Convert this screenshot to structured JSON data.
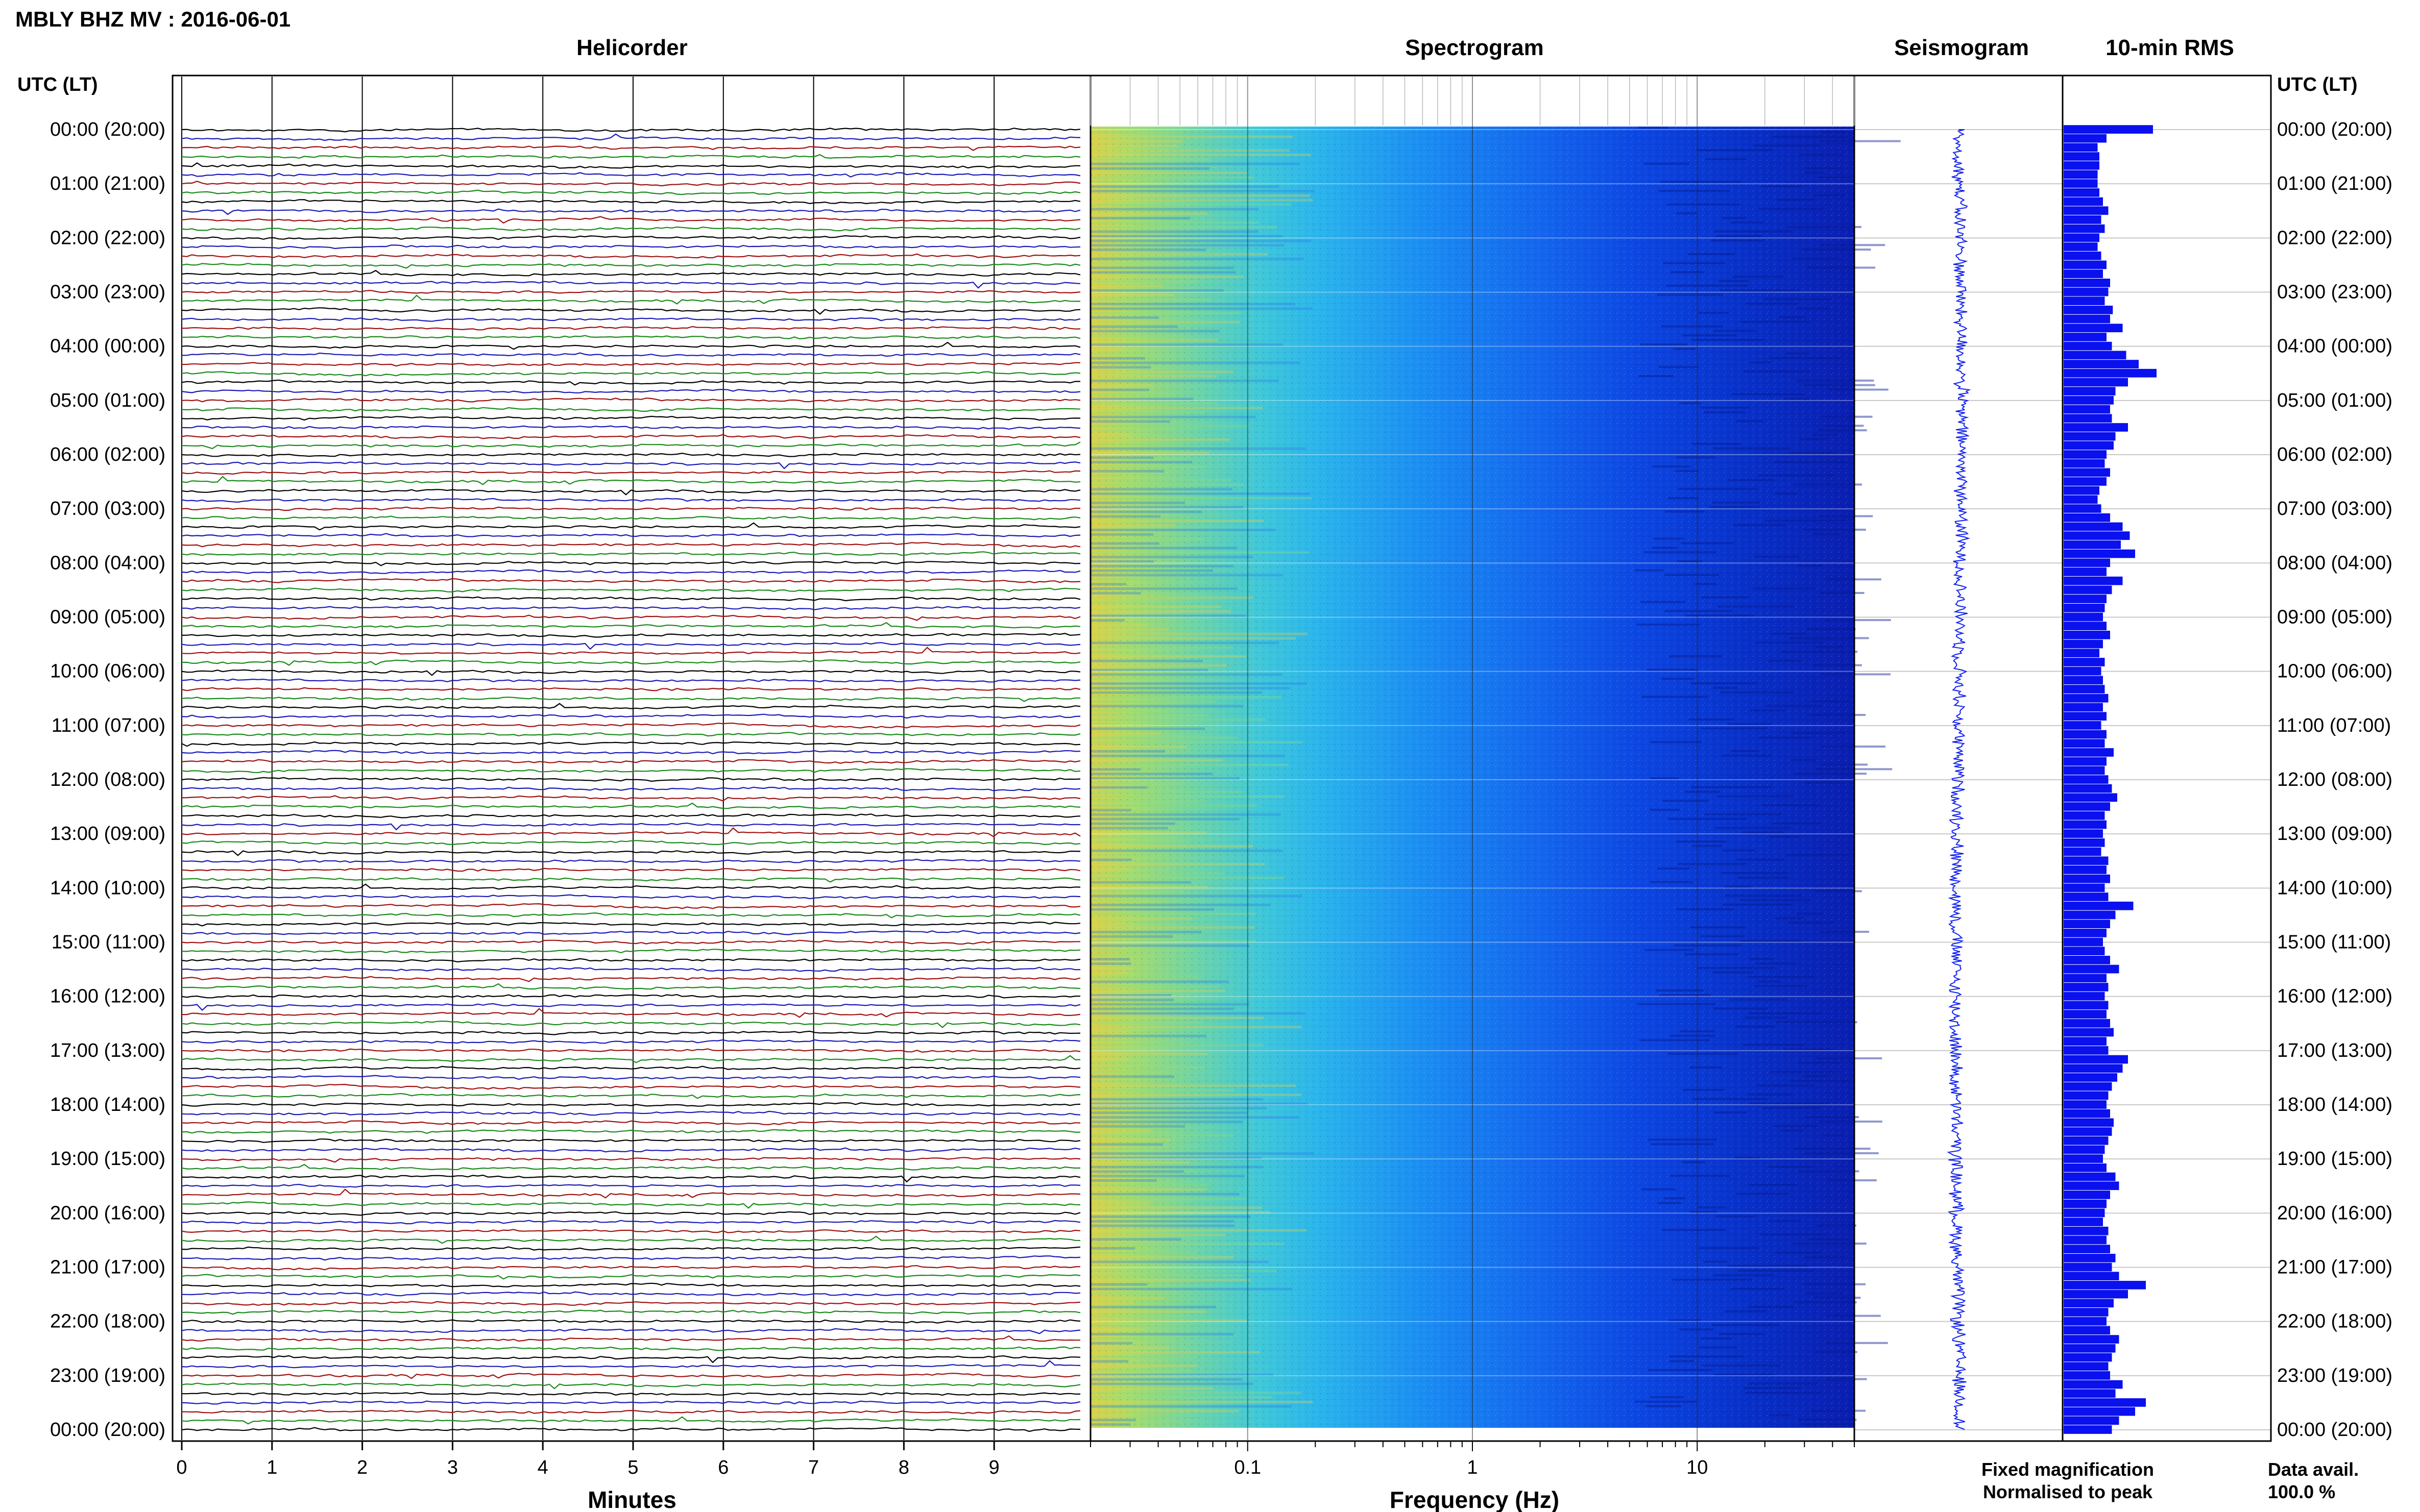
{
  "header": {
    "title": "MBLY BHZ MV : 2016-06-01"
  },
  "panels": {
    "helicorder": "Helicorder",
    "spectrogram": "Spectrogram",
    "seismogram": "Seismogram",
    "rms": "10-min RMS"
  },
  "axes": {
    "left_time_label": "UTC (LT)",
    "right_time_label": "UTC (LT)",
    "minutes_label": "Minutes",
    "frequency_label": "Frequency (Hz)"
  },
  "legend": {
    "fixed": "Fixed magnification",
    "normalised": "Normalised to peak",
    "fixed_color": "#1010ff",
    "normalised_color": "#ff2020"
  },
  "availability": {
    "label": "Data avail.",
    "value": "100.0 %"
  },
  "trace_colors": [
    "#000000",
    "#1a1ab8",
    "#a01010",
    "#1a8a1a"
  ],
  "colors": {
    "rms_bar": "#0a10ee",
    "seismogram_trace": "#1020f0"
  },
  "chart_data": {
    "type": "heatmap",
    "time_labels": [
      "00:00 (20:00)",
      "01:00 (21:00)",
      "02:00 (22:00)",
      "03:00 (23:00)",
      "04:00 (00:00)",
      "05:00 (01:00)",
      "06:00 (02:00)",
      "07:00 (03:00)",
      "08:00 (04:00)",
      "09:00 (05:00)",
      "10:00 (06:00)",
      "11:00 (07:00)",
      "12:00 (08:00)",
      "13:00 (09:00)",
      "14:00 (10:00)",
      "15:00 (11:00)",
      "16:00 (12:00)",
      "17:00 (13:00)",
      "18:00 (14:00)",
      "19:00 (15:00)",
      "20:00 (16:00)",
      "21:00 (17:00)",
      "22:00 (18:00)",
      "23:00 (19:00)",
      "00:00 (20:00)"
    ],
    "helicorder": {
      "x_ticks": [
        "0",
        "1",
        "2",
        "3",
        "4",
        "5",
        "6",
        "7",
        "8",
        "9"
      ],
      "x_range_minutes": [
        0,
        10
      ],
      "traces_per_hour": 6
    },
    "spectrogram": {
      "freq_range_hz": [
        0.02,
        50
      ],
      "scale": "log",
      "tick_labels": [
        "0.1",
        "1",
        "10"
      ],
      "tick_values": [
        0.1,
        1,
        10
      ]
    },
    "rms_10min": {
      "description_scale": "relative",
      "values": [
        1.0,
        0.48,
        0.38,
        0.4,
        0.4,
        0.38,
        0.38,
        0.4,
        0.44,
        0.5,
        0.42,
        0.46,
        0.4,
        0.38,
        0.42,
        0.48,
        0.44,
        0.52,
        0.5,
        0.46,
        0.55,
        0.52,
        0.66,
        0.48,
        0.54,
        0.7,
        0.84,
        1.04,
        0.72,
        0.58,
        0.56,
        0.52,
        0.54,
        0.72,
        0.58,
        0.56,
        0.48,
        0.46,
        0.52,
        0.48,
        0.4,
        0.38,
        0.42,
        0.52,
        0.66,
        0.74,
        0.64,
        0.8,
        0.52,
        0.48,
        0.66,
        0.54,
        0.48,
        0.46,
        0.44,
        0.48,
        0.52,
        0.44,
        0.4,
        0.46,
        0.42,
        0.44,
        0.46,
        0.5,
        0.44,
        0.48,
        0.42,
        0.48,
        0.46,
        0.56,
        0.48,
        0.46,
        0.5,
        0.54,
        0.6,
        0.52,
        0.46,
        0.48,
        0.44,
        0.46,
        0.42,
        0.5,
        0.48,
        0.52,
        0.46,
        0.5,
        0.78,
        0.58,
        0.52,
        0.48,
        0.44,
        0.46,
        0.52,
        0.62,
        0.48,
        0.5,
        0.46,
        0.5,
        0.48,
        0.52,
        0.56,
        0.48,
        0.5,
        0.72,
        0.66,
        0.6,
        0.54,
        0.5,
        0.48,
        0.52,
        0.56,
        0.54,
        0.5,
        0.46,
        0.44,
        0.48,
        0.58,
        0.62,
        0.52,
        0.48,
        0.46,
        0.44,
        0.5,
        0.48,
        0.52,
        0.58,
        0.54,
        0.62,
        0.92,
        0.72,
        0.56,
        0.5,
        0.48,
        0.52,
        0.62,
        0.58,
        0.54,
        0.5,
        0.52,
        0.66,
        0.58,
        0.92,
        0.8,
        0.62,
        0.54
      ]
    }
  }
}
